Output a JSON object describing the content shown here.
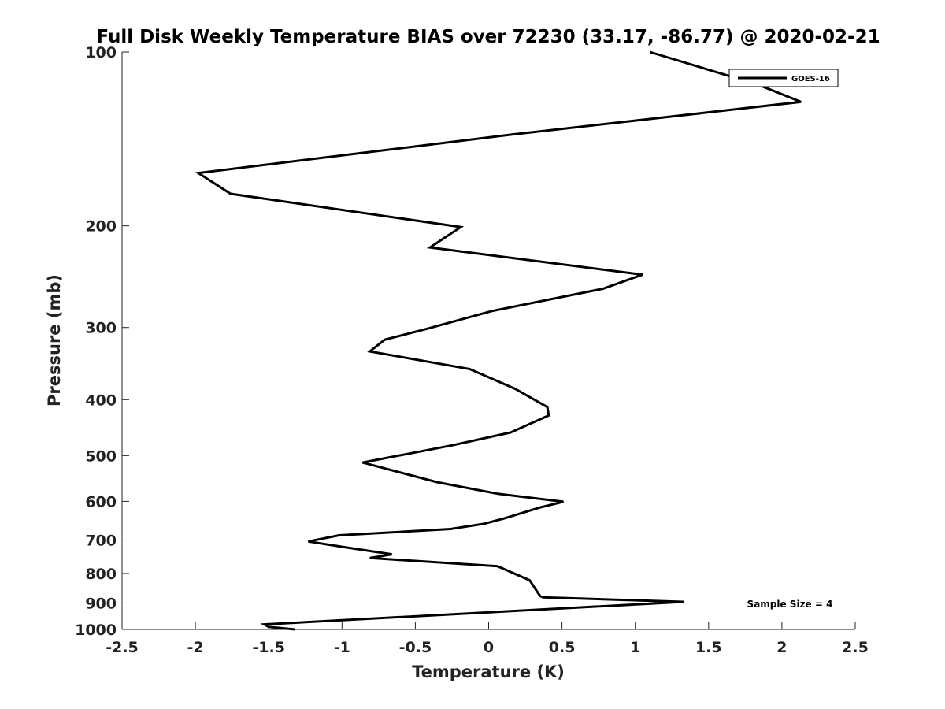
{
  "chart_data": {
    "type": "line",
    "title": "Full Disk Weekly Temperature BIAS over 72230 (33.17, -86.77) @ 2020-02-21",
    "xlabel": "Temperature (K)",
    "ylabel": "Pressure (mb)",
    "xlim": [
      -2.5,
      2.5
    ],
    "ylim": [
      1000,
      100
    ],
    "y_scale": "log",
    "y_reversed": true,
    "grid": false,
    "legend_position": "top-right",
    "x_ticks": [
      "-2.5",
      "-2",
      "-1.5",
      "-1",
      "-0.5",
      "0",
      "0.5",
      "1",
      "1.5",
      "2",
      "2.5"
    ],
    "y_ticks": [
      "100",
      "200",
      "300",
      "400",
      "500",
      "600",
      "700",
      "800",
      "900",
      "1000"
    ],
    "annotation": "Sample Size = 4",
    "series": [
      {
        "name": "GOES-16",
        "color": "#000000",
        "x": [
          -1.32,
          -1.5,
          -1.53,
          1.33,
          0.37,
          0.35,
          0.28,
          0.06,
          -0.81,
          -0.66,
          -0.99,
          -1.23,
          -1.02,
          -0.26,
          -0.03,
          0.1,
          0.35,
          0.51,
          0.06,
          -0.35,
          -0.86,
          -0.25,
          0.15,
          0.41,
          0.4,
          0.18,
          -0.13,
          -0.81,
          -0.71,
          -0.43,
          0.02,
          0.78,
          1.05,
          -0.4,
          -0.19,
          -1.76,
          -1.98,
          0.16,
          2.13,
          1.84,
          1.1
        ],
        "y": [
          1000,
          990,
          980,
          896,
          880,
          875,
          822,
          777,
          752,
          741,
          720,
          704,
          687,
          670,
          656,
          643,
          615,
          601,
          582,
          556,
          514,
          480,
          456,
          426,
          412,
          383,
          354,
          330,
          315,
          302,
          281,
          257,
          243,
          218,
          201,
          176,
          162,
          139,
          122,
          114,
          100
        ]
      }
    ]
  }
}
